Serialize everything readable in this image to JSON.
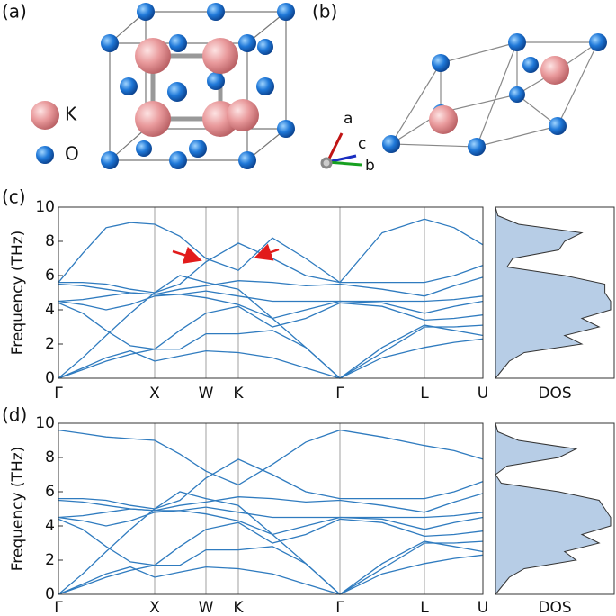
{
  "structure": {
    "panel_a": "(a)",
    "panel_b": "(b)",
    "legend": [
      "K",
      "O"
    ],
    "axes": [
      "a",
      "c",
      "b"
    ]
  },
  "chart_data": [
    {
      "type": "line",
      "panel": "(c)",
      "ylabel": "Frequency (THz)",
      "color": "#2f7bbf",
      "x": [
        0,
        0.27,
        0.53,
        0.8,
        1.07,
        1.35,
        1.64,
        2.0,
        2.38,
        2.75,
        3.13,
        3.6,
        4.07,
        4.4,
        4.72
      ],
      "xlim": [
        0,
        4.72
      ],
      "ylim": [
        0,
        10
      ],
      "yticks": [
        0,
        2,
        4,
        6,
        8,
        10
      ],
      "xticks": [
        {
          "value": 0,
          "label": "Γ"
        },
        {
          "value": 1.07,
          "label": "X"
        },
        {
          "value": 1.64,
          "label": "W"
        },
        {
          "value": 2.0,
          "label": "K"
        },
        {
          "value": 3.13,
          "label": "Γ"
        },
        {
          "value": 4.07,
          "label": "L"
        },
        {
          "value": 4.72,
          "label": "U"
        }
      ],
      "series": [
        {
          "values": [
            5.6,
            7.3,
            8.8,
            9.1,
            9.0,
            8.3,
            7.0,
            6.3,
            8.2,
            7.0,
            5.6,
            8.5,
            9.3,
            8.8,
            7.8
          ]
        },
        {
          "values": [
            5.6,
            5.6,
            5.5,
            5.2,
            5.0,
            5.5,
            6.8,
            7.9,
            7.0,
            6.0,
            5.6,
            5.6,
            5.6,
            6.0,
            6.6
          ]
        },
        {
          "values": [
            5.5,
            5.4,
            5.2,
            5.0,
            4.9,
            5.2,
            5.4,
            5.7,
            5.6,
            5.4,
            5.5,
            5.2,
            4.8,
            5.4,
            5.9
          ]
        },
        {
          "values": [
            4.5,
            4.6,
            4.8,
            5.0,
            4.9,
            4.9,
            5.1,
            4.8,
            4.5,
            4.5,
            4.5,
            4.5,
            4.5,
            4.6,
            4.8
          ]
        },
        {
          "values": [
            4.5,
            4.3,
            4.0,
            4.3,
            4.8,
            4.9,
            4.7,
            4.3,
            3.5,
            4.0,
            4.5,
            4.4,
            3.8,
            4.2,
            4.5
          ]
        },
        {
          "values": [
            4.4,
            3.8,
            2.8,
            1.9,
            1.7,
            2.8,
            3.8,
            4.2,
            3.0,
            3.5,
            4.4,
            4.2,
            3.4,
            3.5,
            3.7
          ]
        },
        {
          "values": [
            0,
            1.2,
            2.5,
            3.8,
            5.0,
            6.0,
            5.6,
            5.2,
            3.5,
            1.8,
            0,
            1.8,
            3.1,
            2.8,
            2.5
          ]
        },
        {
          "values": [
            0,
            0.5,
            1.0,
            1.4,
            1.7,
            1.7,
            2.6,
            2.6,
            2.8,
            1.8,
            0,
            1.5,
            3.0,
            3.0,
            3.1
          ]
        },
        {
          "values": [
            0,
            0.6,
            1.2,
            1.6,
            1.0,
            1.3,
            1.6,
            1.5,
            1.2,
            0.6,
            0,
            1.2,
            1.8,
            2.1,
            2.3
          ]
        }
      ]
    },
    {
      "type": "area",
      "orientation": "horizontal",
      "xlabel": "DOS",
      "color": "#b7cde6",
      "x": [
        0,
        0.5,
        1,
        1.5,
        2,
        2.5,
        3,
        3.5,
        4,
        4.5,
        5,
        5.5,
        6,
        6.5,
        7,
        7.5,
        8,
        8.5,
        9,
        9.5,
        10
      ],
      "xlim": [
        0,
        10
      ],
      "ylim": [
        0,
        1
      ],
      "values": [
        0,
        0.06,
        0.12,
        0.25,
        0.75,
        0.6,
        0.9,
        0.75,
        1.0,
        1.0,
        0.95,
        0.95,
        0.6,
        0.1,
        0.15,
        0.55,
        0.6,
        0.75,
        0.2,
        0.02,
        0
      ]
    },
    {
      "type": "line",
      "panel": "(d)",
      "ylabel": "Frequency (THz)",
      "color": "#2f7bbf",
      "x": [
        0,
        0.27,
        0.53,
        0.8,
        1.07,
        1.35,
        1.64,
        2.0,
        2.38,
        2.75,
        3.13,
        3.6,
        4.07,
        4.4,
        4.72
      ],
      "xlim": [
        0,
        4.72
      ],
      "ylim": [
        0,
        10
      ],
      "yticks": [
        0,
        2,
        4,
        6,
        8,
        10
      ],
      "xticks": [
        {
          "value": 0,
          "label": "Γ"
        },
        {
          "value": 1.07,
          "label": "X"
        },
        {
          "value": 1.64,
          "label": "W"
        },
        {
          "value": 2.0,
          "label": "K"
        },
        {
          "value": 3.13,
          "label": "Γ"
        },
        {
          "value": 4.07,
          "label": "L"
        },
        {
          "value": 4.72,
          "label": "U"
        }
      ],
      "series": [
        {
          "values": [
            9.6,
            9.4,
            9.2,
            9.1,
            9.0,
            8.2,
            7.2,
            6.4,
            7.6,
            8.9,
            9.6,
            9.2,
            8.7,
            8.4,
            7.9
          ]
        },
        {
          "values": [
            5.6,
            5.6,
            5.5,
            5.2,
            5.0,
            5.5,
            6.8,
            7.9,
            7.0,
            6.0,
            5.6,
            5.6,
            5.6,
            6.0,
            6.6
          ]
        },
        {
          "values": [
            5.5,
            5.4,
            5.2,
            5.0,
            4.9,
            5.2,
            5.4,
            5.7,
            5.6,
            5.4,
            5.5,
            5.2,
            4.8,
            5.4,
            5.9
          ]
        },
        {
          "values": [
            4.5,
            4.6,
            4.8,
            5.0,
            4.9,
            4.9,
            5.1,
            4.8,
            4.5,
            4.5,
            4.5,
            4.5,
            4.5,
            4.6,
            4.8
          ]
        },
        {
          "values": [
            4.5,
            4.3,
            4.0,
            4.3,
            4.8,
            4.9,
            4.7,
            4.3,
            3.5,
            4.0,
            4.5,
            4.4,
            3.8,
            4.2,
            4.5
          ]
        },
        {
          "values": [
            4.4,
            3.8,
            2.8,
            1.9,
            1.7,
            2.8,
            3.8,
            4.2,
            3.0,
            3.5,
            4.4,
            4.2,
            3.4,
            3.5,
            3.7
          ]
        },
        {
          "values": [
            0,
            1.2,
            2.5,
            3.8,
            5.0,
            6.0,
            5.6,
            5.2,
            3.5,
            1.8,
            0,
            1.8,
            3.1,
            2.8,
            2.5
          ]
        },
        {
          "values": [
            0,
            0.5,
            1.0,
            1.4,
            1.7,
            1.7,
            2.6,
            2.6,
            2.8,
            1.8,
            0,
            1.5,
            3.0,
            3.0,
            3.1
          ]
        },
        {
          "values": [
            0,
            0.6,
            1.2,
            1.6,
            1.0,
            1.3,
            1.6,
            1.5,
            1.2,
            0.6,
            0,
            1.2,
            1.8,
            2.1,
            2.3
          ]
        }
      ]
    },
    {
      "type": "area",
      "orientation": "horizontal",
      "xlabel": "DOS",
      "color": "#b7cde6",
      "x": [
        0,
        0.5,
        1,
        1.5,
        2,
        2.5,
        3,
        3.5,
        4,
        4.5,
        5,
        5.5,
        6,
        6.5,
        7,
        7.5,
        8,
        8.5,
        9,
        9.5,
        10
      ],
      "xlim": [
        0,
        10
      ],
      "ylim": [
        0,
        1
      ],
      "values": [
        0,
        0.06,
        0.12,
        0.25,
        0.7,
        0.6,
        0.9,
        0.75,
        1.0,
        1.0,
        0.95,
        0.9,
        0.55,
        0.05,
        0.0,
        0.1,
        0.55,
        0.7,
        0.2,
        0.02,
        0
      ]
    }
  ]
}
